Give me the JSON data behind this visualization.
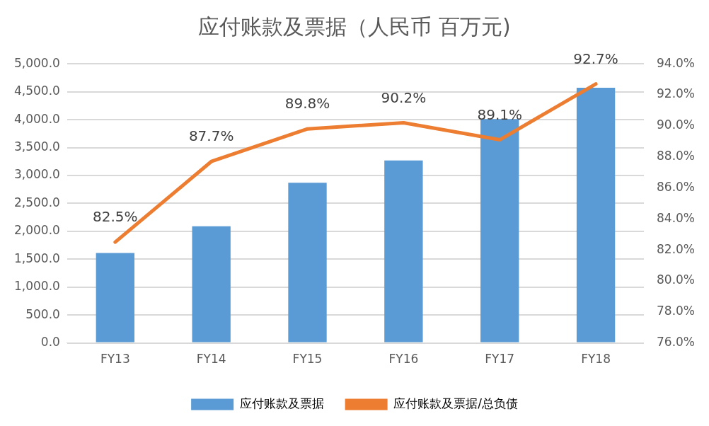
{
  "chart_data": {
    "type": "bar",
    "title": "应付账款及票据（人民币 百万元)",
    "categories": [
      "FY13",
      "FY14",
      "FY15",
      "FY16",
      "FY17",
      "FY18"
    ],
    "series": [
      {
        "name": "应付账款及票据",
        "color": "#5b9bd5",
        "values": [
          1610,
          2090,
          2870,
          3270,
          4010,
          4570
        ]
      },
      {
        "name": "应付账款及票据/总负债",
        "type": "line",
        "axis": "y2",
        "color": "#ed7d31",
        "values": [
          82.5,
          87.7,
          89.8,
          90.2,
          89.1,
          92.7
        ],
        "value_labels": [
          "82.5%",
          "87.7%",
          "89.8%",
          "90.2%",
          "89.1%",
          "92.7%"
        ]
      }
    ],
    "ylim": [
      0,
      5000
    ],
    "yticks": [
      {
        "value": 0,
        "label": "0.0"
      },
      {
        "value": 500,
        "label": "500.0"
      },
      {
        "value": 1000,
        "label": "1,000.0"
      },
      {
        "value": 1500,
        "label": "1,500.0"
      },
      {
        "value": 2000,
        "label": "2,000.0"
      },
      {
        "value": 2500,
        "label": "2,500.0"
      },
      {
        "value": 3000,
        "label": "3,000.0"
      },
      {
        "value": 3500,
        "label": "3,500.0"
      },
      {
        "value": 4000,
        "label": "4,000.0"
      },
      {
        "value": 4500,
        "label": "4,500.0"
      },
      {
        "value": 5000,
        "label": "5,000.0"
      }
    ],
    "y2lim": [
      76,
      94
    ],
    "y2ticks": [
      {
        "value": 76,
        "label": "76.0%"
      },
      {
        "value": 78,
        "label": "78.0%"
      },
      {
        "value": 80,
        "label": "80.0%"
      },
      {
        "value": 82,
        "label": "82.0%"
      },
      {
        "value": 84,
        "label": "84.0%"
      },
      {
        "value": 86,
        "label": "86.0%"
      },
      {
        "value": 88,
        "label": "88.0%"
      },
      {
        "value": 90,
        "label": "90.0%"
      },
      {
        "value": 92,
        "label": "92.0%"
      },
      {
        "value": 94,
        "label": "94.0%"
      }
    ],
    "grid": "y",
    "legend": "bottom",
    "marker": "none",
    "line_style": "solid"
  }
}
